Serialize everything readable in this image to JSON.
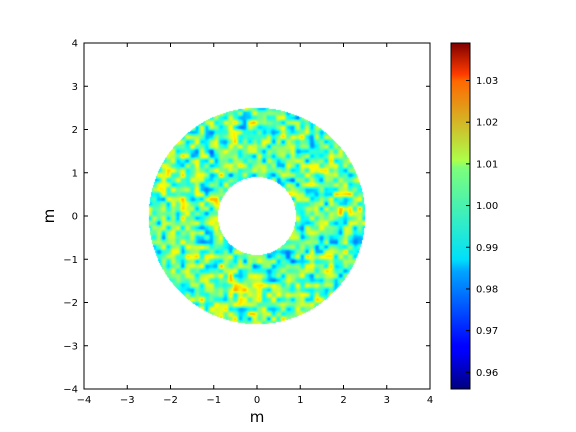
{
  "chart_data": {
    "type": "heatmap",
    "title": "",
    "xlabel": "m",
    "ylabel": "m",
    "xlim": [
      -4,
      4
    ],
    "ylim": [
      -4,
      4
    ],
    "xticks": [
      "−4",
      "−3",
      "−2",
      "−1",
      "0",
      "1",
      "2",
      "3",
      "4"
    ],
    "yticks": [
      "−4",
      "−3",
      "−2",
      "−1",
      "0",
      "1",
      "2",
      "3",
      "4"
    ],
    "xtick_values": [
      -4,
      -3,
      -2,
      -1,
      0,
      1,
      2,
      3,
      4
    ],
    "ytick_values": [
      -4,
      -3,
      -2,
      -1,
      0,
      1,
      2,
      3,
      4
    ],
    "field": {
      "shape": "annulus",
      "center": [
        0,
        0
      ],
      "inner_radius": 0.9,
      "outer_radius": 2.5,
      "nominal_value": 0.995,
      "pattern": "random speckle"
    },
    "colorbar": {
      "colormap": "jet",
      "range": [
        0.956,
        1.039
      ],
      "ticks": [
        "0.96",
        "0.97",
        "0.98",
        "0.99",
        "1.00",
        "1.01",
        "1.02",
        "1.03"
      ],
      "tick_values": [
        0.96,
        0.97,
        0.98,
        0.99,
        1.0,
        1.01,
        1.02,
        1.03
      ]
    },
    "grid": false
  }
}
